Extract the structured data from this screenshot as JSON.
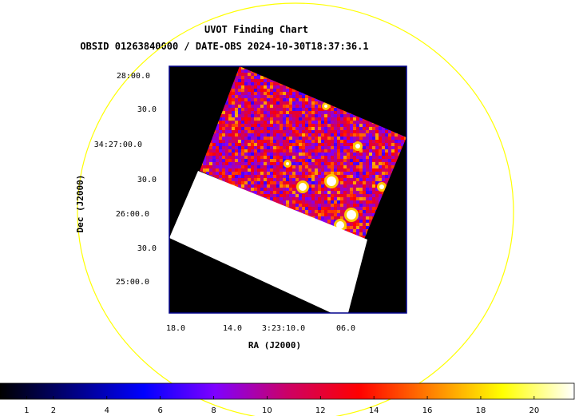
{
  "chart_data": {
    "type": "heatmap",
    "title": "UVOT Finding Chart",
    "subtitle": "OBSID 01263840000 / DATE-OBS 2024-10-30T18:37:36.1",
    "xlabel": "RA (J2000)",
    "ylabel": "Dec (J2000)",
    "x_ticks": [
      "18.0",
      "14.0",
      "3:23:10.0",
      "06.0"
    ],
    "y_ticks": [
      "28:00.0",
      "30.0",
      "34:27:00.0",
      "30.0",
      "26:00.0",
      "30.0",
      "25:00.0"
    ],
    "colorbar": {
      "ticks": [
        "1",
        "2",
        "4",
        "6",
        "8",
        "10",
        "12",
        "14",
        "16",
        "18",
        "20"
      ],
      "min": 0,
      "max": 21.5,
      "colormap": [
        "#000000",
        "#00007f",
        "#0000ff",
        "#7f00ff",
        "#cc0066",
        "#ff0000",
        "#ff8000",
        "#ffff00",
        "#ffffff"
      ]
    },
    "frame_color": "#00008b",
    "circle_color": "#ffff00",
    "image_background": "#000000",
    "mask_color": "#ffffff"
  }
}
